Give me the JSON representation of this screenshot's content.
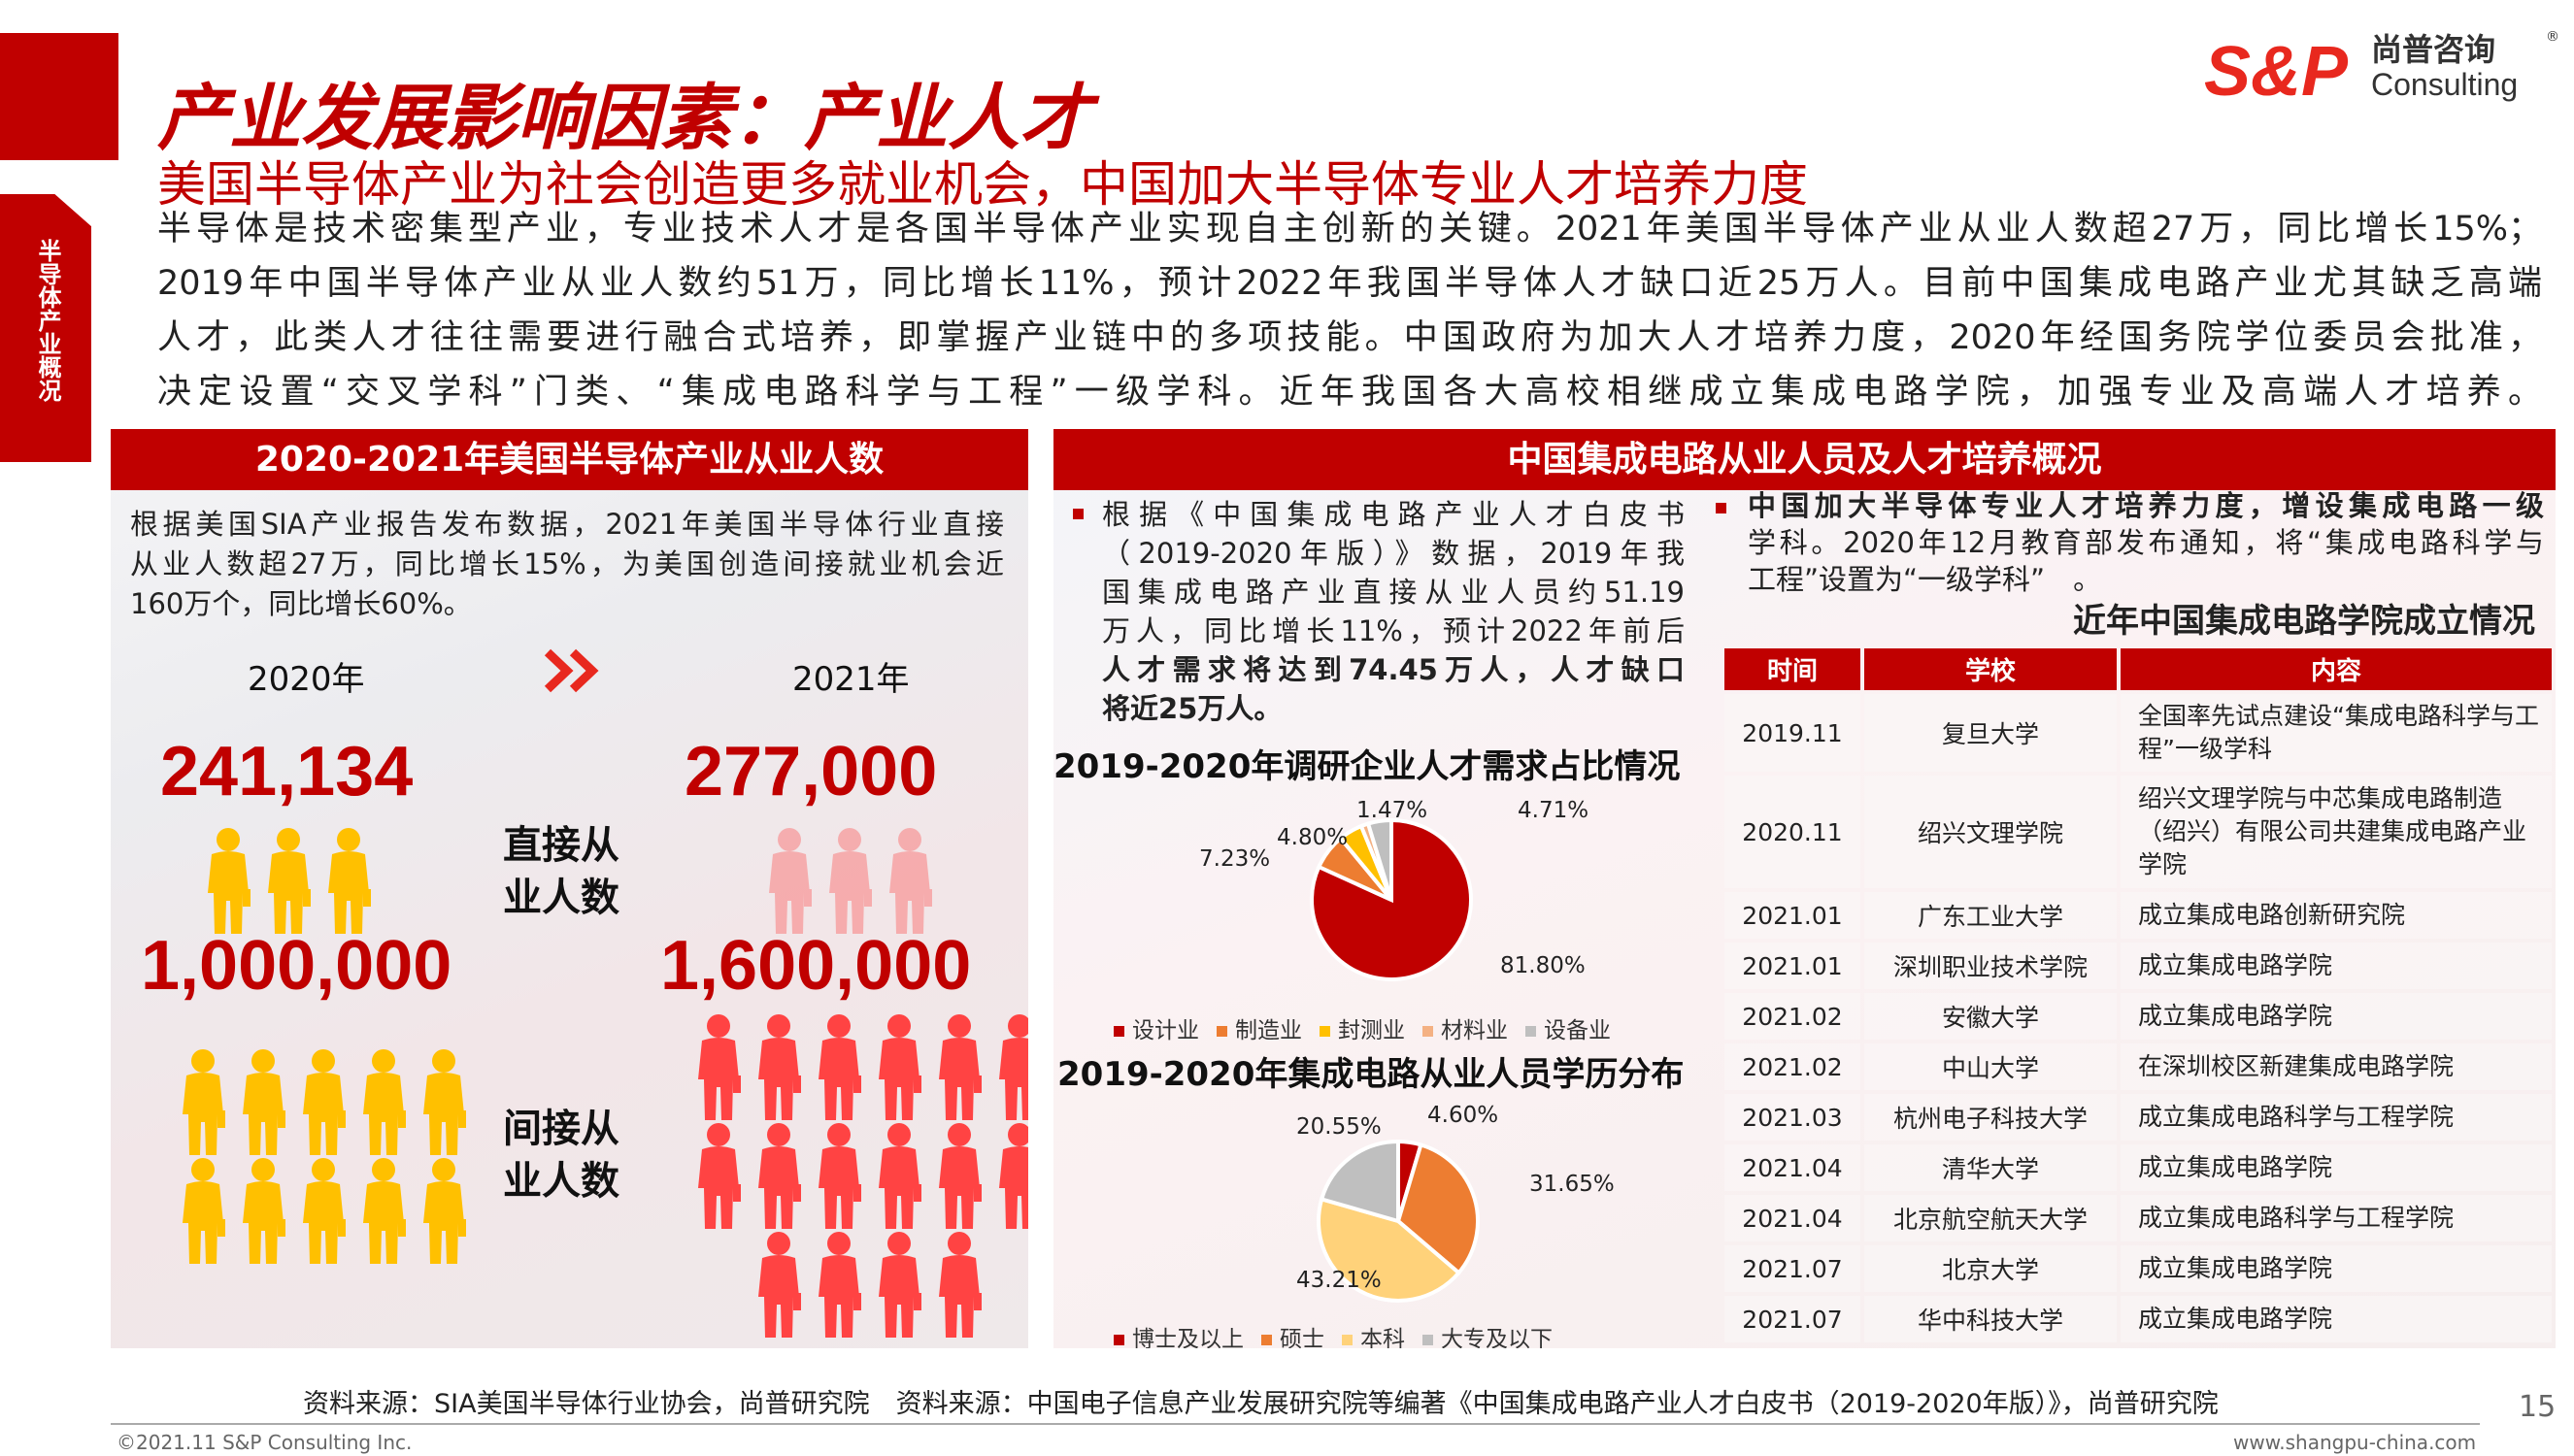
{
  "side_tab": "半导体产业概况",
  "title": "产业发展影响因素：产业人才",
  "subtitle": "美国半导体产业为社会创造更多就业机会，中国加大半导体专业人才培养力度",
  "intro_lines": [
    "半导体是技术密集型产业，专业技术人才是各国半导体产业实现自主创新的关键。2021年美国半导体产业从业人数超27万，同比增长15%；",
    "2019年中国半导体产业从业人数约51万，同比增长11%，预计2022年我国半导体人才缺口近25万人。目前中国集成电路产业尤其缺乏高端",
    "人才，此类人才往往需要进行融合式培养，即掌握产业链中的多项技能。中国政府为加大人才培养力度，2020年经国务院学位委员会批准，",
    "决定设置“交叉学科”门类、“集成电路科学与工程”一级学科。近年我国各大高校相继成立集成电路学院，加强专业及高端人才培养。"
  ],
  "logo": {
    "mark": "S&P",
    "cn": "尚普咨询",
    "en": "Consulting"
  },
  "left_panel": {
    "header": "2020-2021年美国半导体产业从业人数",
    "para_lines": [
      "根据美国SIA产业报告发布数据，2021年美国半导体行业直接",
      "从业人数超27万，同比增长15%，为美国创造间接就业机会近",
      "160万个，同比增长60%。"
    ],
    "year_a": "2020年",
    "year_b": "2021年",
    "direct_a": "241,134",
    "direct_b": "277,000",
    "direct_label": [
      "直接从",
      "业人数"
    ],
    "indirect_a": "1,000,000",
    "indirect_b": "1,600,000",
    "indirect_label": [
      "间接从",
      "业人数"
    ],
    "icons": {
      "direct_a_count": 3,
      "direct_b_count": 3,
      "indirect_a_count": 10,
      "indirect_b_count": 16
    },
    "colors": {
      "yellow": "#ffc000",
      "red": "#ff4343"
    }
  },
  "right_panel": {
    "header": "中国集成电路从业人员及人才培养概况",
    "mid_para": [
      {
        "t": "根据《中国集成电路产业人才白皮书",
        "b": false
      },
      {
        "t": "（2019-2020年版）》数据，2019年我",
        "b": false
      },
      {
        "t": "国集成电路产业直接从业人员约51.19",
        "b": false
      },
      {
        "t": "万人，同比增长11%，预计2022年前后",
        "b": false
      },
      {
        "t": "人才需求将达到74.45万人，人才缺口",
        "b": true
      },
      {
        "t": "将近25万人。",
        "b": true
      }
    ],
    "right_para": [
      "中国加大半导体专业人才培养力度，增设集成电路一级",
      "学科。2020年12月教育部发布通知，将“集成电路科学与",
      "工程”设置为“一级学科”　。"
    ],
    "table_title": "近年中国集成电路学院成立情况",
    "table_headers": [
      "时间",
      "学校",
      "内容"
    ],
    "table_rows": [
      [
        "2019.11",
        "复旦大学",
        "全国率先试点建设“集成电路科学与工程”一级学科"
      ],
      [
        "2020.11",
        "绍兴文理学院",
        "绍兴文理学院与中芯集成电路制造（绍兴）有限公司共建集成电路产业学院"
      ],
      [
        "2021.01",
        "广东工业大学",
        "成立集成电路创新研究院"
      ],
      [
        "2021.01",
        "深圳职业技术学院",
        "成立集成电路学院"
      ],
      [
        "2021.02",
        "安徽大学",
        "成立集成电路学院"
      ],
      [
        "2021.02",
        "中山大学",
        "在深圳校区新建集成电路学院"
      ],
      [
        "2021.03",
        "杭州电子科技大学",
        "成立集成电路科学与工程学院"
      ],
      [
        "2021.04",
        "清华大学",
        "成立集成电路学院"
      ],
      [
        "2021.04",
        "北京航空航天大学",
        "成立集成电路科学与工程学院"
      ],
      [
        "2021.07",
        "北京大学",
        "成立集成电路学院"
      ],
      [
        "2021.07",
        "华中科技大学",
        "成立集成电路学院"
      ]
    ]
  },
  "chart_data": [
    {
      "type": "pie",
      "title": "2019-2020年调研企业人才需求占比情况",
      "categories": [
        "设计业",
        "制造业",
        "封测业",
        "材料业",
        "设备业"
      ],
      "values": [
        81.8,
        7.23,
        4.8,
        1.47,
        4.71
      ],
      "labels": [
        "81.80%",
        "7.23%",
        "4.80%",
        "1.47%",
        "4.71%"
      ],
      "colors": [
        "#c00000",
        "#ed7d31",
        "#ffc000",
        "#f4b183",
        "#bfbfbf"
      ],
      "legend": "bottom"
    },
    {
      "type": "pie",
      "title": "2019-2020年集成电路从业人员学历分布",
      "categories": [
        "博士及以上",
        "硕士",
        "本科",
        "大专及以下"
      ],
      "values": [
        4.6,
        31.65,
        43.21,
        20.55
      ],
      "labels": [
        "4.60%",
        "31.65%",
        "43.21%",
        "20.55%"
      ],
      "colors": [
        "#c00000",
        "#ed7d31",
        "#ffd27a",
        "#bfbfbf"
      ],
      "legend": "bottom"
    }
  ],
  "footer": {
    "source": "资料来源：SIA美国半导体行业协会，尚普研究院　资料来源：中国电子信息产业发展研究院等编著《中国集成电路产业人才白皮书（2019-2020年版）》，尚普研究院",
    "page": "15",
    "copyright": "©2021.11  S&P Consulting Inc.",
    "website": "www.shangpu-china.com"
  }
}
